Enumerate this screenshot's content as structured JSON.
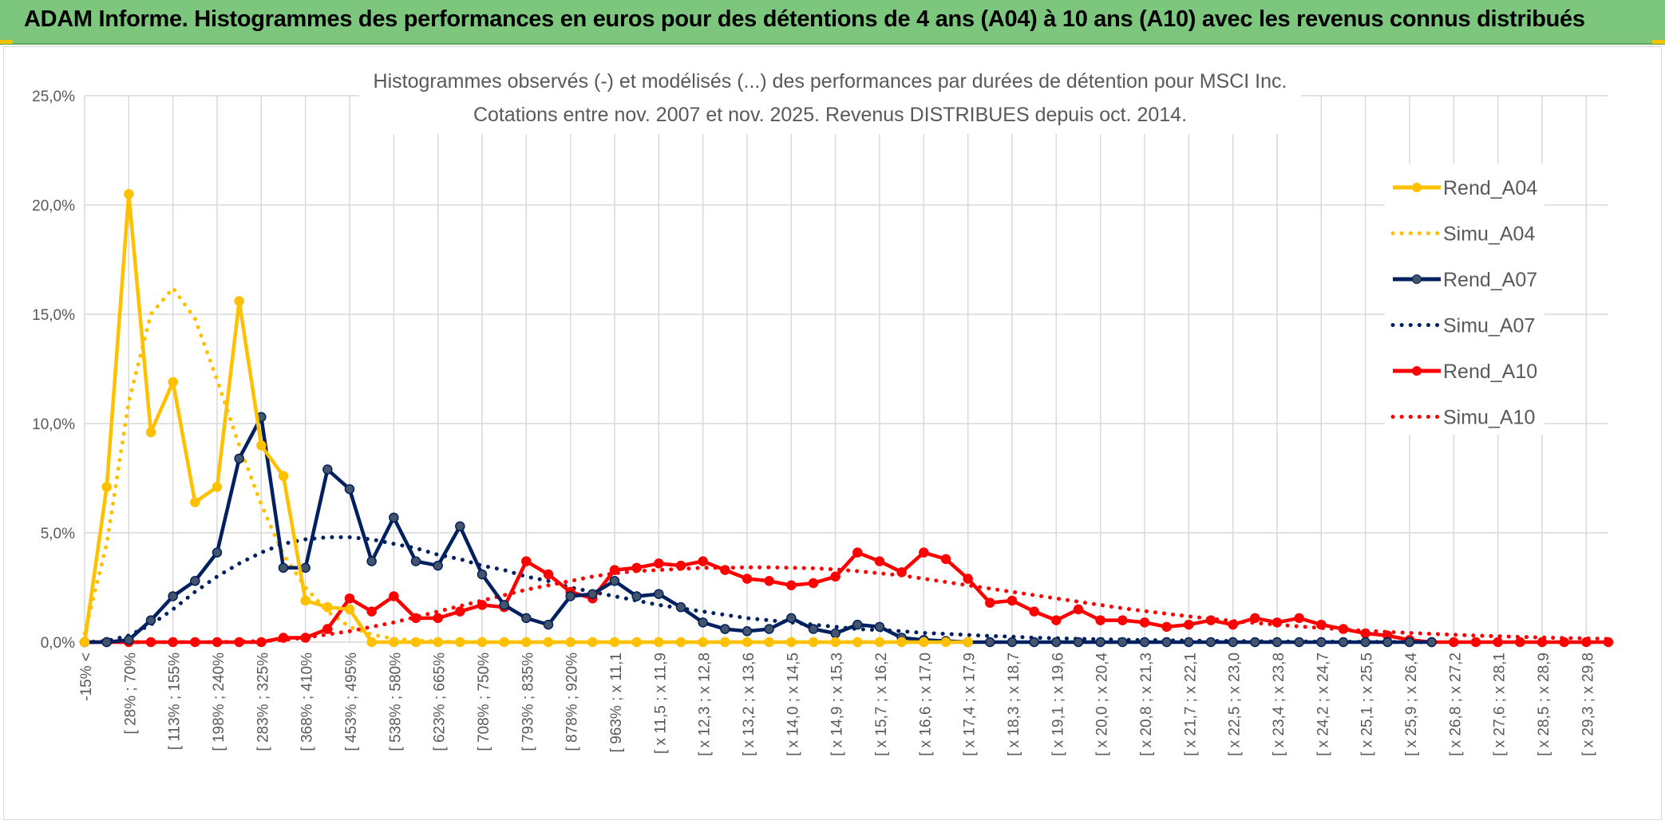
{
  "banner": {
    "title": "ADAM Informe. Histogrammes des performances en euros pour des détentions de 4 ans (A04) à 10 ans (A10) avec les revenus connus distribués"
  },
  "chart_data": {
    "type": "line",
    "title_line1": "Histogrammes observés (-) et modélisés (...) des performances par durées de détention pour MSCI Inc.",
    "title_line2": "Cotations entre nov. 2007 et nov. 2025. Revenus DISTRIBUES depuis oct. 2014.",
    "ylim": [
      0,
      25
    ],
    "yticks": [
      "0,0%",
      "5,0%",
      "10,0%",
      "15,0%",
      "20,0%",
      "25,0%"
    ],
    "xtick_labels": [
      "-15% <",
      "[ 28% ; 70%",
      "[ 113% ; 155%",
      "[ 198% ; 240%",
      "[ 283% ; 325%",
      "[ 368% ; 410%",
      "[ 453% ; 495%",
      "[ 538% ; 580%",
      "[ 623% ; 665%",
      "[ 708% ; 750%",
      "[ 793% ; 835%",
      "[ 878% ; 920%",
      "[ 963% ; x 11,1",
      "[ x 11,5 ; x 11,9",
      "[ x 12,3 ; x 12,8",
      "[ x 13,2 ; x 13,6",
      "[ x 14,0 ; x 14,5",
      "[ x 14,9 ; x 15,3",
      "[ x 15,7 ; x 16,2",
      "[ x 16,6 ; x 17,0",
      "[ x 17,4 ; x 17,9",
      "[ x 18,3 ; x 18,7",
      "[ x 19,1 ; x 19,6",
      "[ x 20,0 ; x 20,4",
      "[ x 20,8 ; x 21,3",
      "[ x 21,7 ; x 22,1",
      "[ x 22,5 ; x 23,0",
      "[ x 23,4 ; x 23,8",
      "[ x 24,2 ; x 24,7",
      "[ x 25,1 ; x 25,5",
      "[ x 25,9 ; x 26,4",
      "[ x 26,8 ; x 27,2",
      "[ x 27,6 ; x 28,1",
      "[ x 28,5 ; x 28,9",
      "[ x 29,3 ; x 29,8"
    ],
    "n_points": 70,
    "series": [
      {
        "name": "Rend_A04",
        "color": "#ffc000",
        "style": "solid",
        "marker": true,
        "values": [
          0,
          7.1,
          20.5,
          9.6,
          11.9,
          6.4,
          7.1,
          15.6,
          9.0,
          7.6,
          1.9,
          1.6,
          1.5,
          0,
          0,
          0,
          0,
          0,
          0,
          0,
          0,
          0,
          0,
          0,
          0,
          0,
          0,
          0,
          0,
          0,
          0,
          0,
          0,
          0,
          0,
          0,
          0,
          0,
          0,
          0,
          0
        ]
      },
      {
        "name": "Simu_A04",
        "color": "#ffc000",
        "style": "dotted",
        "marker": false,
        "values": [
          0.4,
          4.5,
          11.0,
          15.0,
          16.2,
          14.8,
          12.0,
          9.0,
          6.3,
          4.0,
          2.5,
          1.4,
          0.7,
          0.35,
          0.15,
          0.08,
          0.03,
          0.01,
          0,
          0,
          0,
          0,
          0,
          0,
          0,
          0,
          0,
          0,
          0,
          0,
          0,
          0,
          0,
          0,
          0,
          0,
          0,
          0,
          0,
          0,
          0
        ]
      },
      {
        "name": "Rend_A07",
        "color": "#002060",
        "style": "solid",
        "marker": true,
        "values": [
          0,
          0,
          0.1,
          1.0,
          2.1,
          2.8,
          4.1,
          8.4,
          10.3,
          3.4,
          3.4,
          7.9,
          7.0,
          3.7,
          5.7,
          3.7,
          3.5,
          5.3,
          3.1,
          1.7,
          1.1,
          0.8,
          2.1,
          2.2,
          2.8,
          2.1,
          2.2,
          1.6,
          0.9,
          0.6,
          0.5,
          0.6,
          1.1,
          0.6,
          0.4,
          0.8,
          0.7,
          0.2,
          0.1,
          0.05,
          0,
          0,
          0,
          0,
          0,
          0,
          0,
          0,
          0,
          0,
          0,
          0,
          0,
          0,
          0,
          0,
          0,
          0,
          0,
          0,
          0,
          0
        ]
      },
      {
        "name": "Simu_A07",
        "color": "#002060",
        "style": "dotted",
        "marker": false,
        "values": [
          0,
          0.05,
          0.3,
          0.8,
          1.5,
          2.3,
          3.0,
          3.6,
          4.1,
          4.5,
          4.7,
          4.8,
          4.8,
          4.7,
          4.5,
          4.3,
          4.0,
          3.8,
          3.5,
          3.3,
          3.0,
          2.8,
          2.5,
          2.3,
          2.1,
          1.9,
          1.7,
          1.55,
          1.4,
          1.25,
          1.1,
          1.0,
          0.9,
          0.8,
          0.7,
          0.6,
          0.55,
          0.5,
          0.42,
          0.38,
          0.33,
          0.28,
          0.25,
          0.2,
          0.18,
          0.15,
          0.13,
          0.11,
          0.09,
          0.08,
          0.07,
          0.06,
          0.05,
          0.04,
          0.03,
          0.03,
          0.02,
          0.02,
          0.01,
          0.01,
          0,
          0
        ]
      },
      {
        "name": "Rend_A10",
        "color": "#ff0000",
        "style": "solid",
        "marker": true,
        "values": [
          0,
          0,
          0,
          0,
          0,
          0,
          0,
          0,
          0,
          0.2,
          0.2,
          0.6,
          2.0,
          1.4,
          2.1,
          1.1,
          1.1,
          1.4,
          1.7,
          1.6,
          3.7,
          3.1,
          2.3,
          2.0,
          3.3,
          3.4,
          3.6,
          3.5,
          3.7,
          3.3,
          2.9,
          2.8,
          2.6,
          2.7,
          3.0,
          4.1,
          3.7,
          3.2,
          4.1,
          3.8,
          2.9,
          1.8,
          1.9,
          1.4,
          1.0,
          1.5,
          1.0,
          1.0,
          0.9,
          0.7,
          0.8,
          1.0,
          0.8,
          1.1,
          0.9,
          1.1,
          0.8,
          0.6,
          0.4,
          0.3,
          0.1,
          0,
          0,
          0,
          0,
          0,
          0,
          0,
          0,
          0
        ]
      },
      {
        "name": "Simu_A10",
        "color": "#ff0000",
        "style": "dotted",
        "marker": false,
        "values": [
          0,
          0,
          0,
          0,
          0,
          0,
          0,
          0.02,
          0.05,
          0.1,
          0.2,
          0.35,
          0.5,
          0.7,
          0.9,
          1.15,
          1.4,
          1.65,
          1.9,
          2.15,
          2.4,
          2.6,
          2.8,
          3.0,
          3.15,
          3.25,
          3.3,
          3.35,
          3.4,
          3.4,
          3.42,
          3.42,
          3.4,
          3.38,
          3.33,
          3.25,
          3.15,
          3.05,
          2.9,
          2.75,
          2.6,
          2.45,
          2.3,
          2.15,
          2.0,
          1.85,
          1.7,
          1.55,
          1.42,
          1.3,
          1.18,
          1.07,
          0.97,
          0.88,
          0.8,
          0.72,
          0.65,
          0.58,
          0.52,
          0.47,
          0.42,
          0.38,
          0.34,
          0.3,
          0.27,
          0.24,
          0.21,
          0.19,
          0.17,
          0.15
        ]
      }
    ],
    "legend_position": "right"
  }
}
